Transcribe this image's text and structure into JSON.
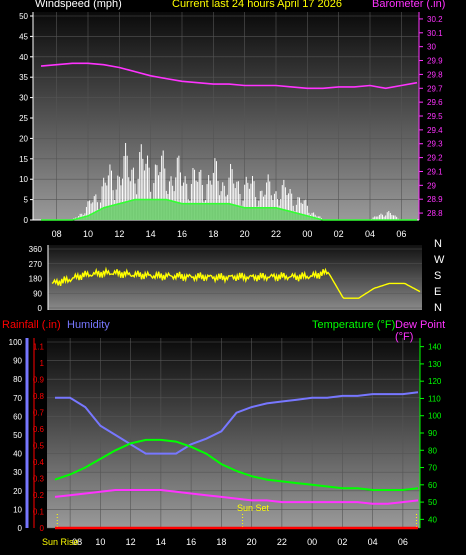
{
  "colors": {
    "background": "#000000",
    "white": "#ffffff",
    "yellow": "#ffff00",
    "magenta": "#ff33ff",
    "green": "#00ff00",
    "red": "#ff0000",
    "blue": "#7777ff",
    "wind_green": "#33ff33",
    "gust_white": "#ffffff"
  },
  "header": {
    "left": "Windspeed (mph)",
    "center": "Current last 24 hours April 17 2026",
    "right": "Barometer (.in)"
  },
  "bottom_header": {
    "rainfall": "Rainfall (.in)",
    "humidity": "Humidity",
    "temperature": "Temperature (°F)",
    "dewpoint": "Dew Point (°F)"
  },
  "annotations": {
    "sun_set": "Sun Set",
    "sun_rise": "Sun Rise"
  },
  "compass": [
    "N",
    "W",
    "S",
    "E",
    "N"
  ],
  "chart_data": [
    {
      "type": "line",
      "panel": "wind-barometer",
      "x_ticks": [
        "08",
        "10",
        "12",
        "14",
        "16",
        "18",
        "20",
        "22",
        "00",
        "02",
        "04",
        "06"
      ],
      "y_left_ticks": [
        "0",
        "5",
        "10",
        "15",
        "20",
        "25",
        "30",
        "35",
        "40",
        "45",
        "50"
      ],
      "y_left_range": [
        0,
        50
      ],
      "y_right_ticks": [
        "28.8",
        "28.9",
        "29",
        "29.1",
        "29.2",
        "29.3",
        "29.4",
        "29.5",
        "29.6",
        "29.7",
        "29.8",
        "29.9",
        "30",
        "30.1",
        "30.2"
      ],
      "y_right_range": [
        28.75,
        30.25
      ],
      "barometer": {
        "x": [
          0,
          1,
          2,
          3,
          4,
          5,
          6,
          7,
          8,
          9,
          10,
          11,
          12,
          13,
          14,
          15,
          16,
          17,
          18,
          19,
          20,
          21,
          22,
          23,
          24
        ],
        "y": [
          29.86,
          29.87,
          29.88,
          29.88,
          29.87,
          29.85,
          29.82,
          29.79,
          29.77,
          29.75,
          29.74,
          29.73,
          29.73,
          29.72,
          29.72,
          29.72,
          29.71,
          29.7,
          29.7,
          29.71,
          29.71,
          29.72,
          29.7,
          29.72,
          29.74
        ]
      },
      "wind_gust": {
        "x": [
          0,
          1,
          2,
          3,
          4,
          5,
          6,
          7,
          8,
          9,
          10,
          11,
          12,
          13,
          14,
          15,
          16,
          17,
          18,
          19,
          20,
          21,
          22,
          23,
          24
        ],
        "y": [
          0,
          0,
          0,
          3,
          8,
          11,
          13,
          12,
          11,
          10,
          9,
          10,
          9,
          8,
          7,
          7,
          6,
          3,
          0,
          0,
          0,
          0,
          2,
          0,
          0
        ]
      },
      "wind_avg": {
        "x": [
          0,
          1,
          2,
          3,
          4,
          5,
          6,
          7,
          8,
          9,
          10,
          11,
          12,
          13,
          14,
          15,
          16,
          17,
          18,
          19,
          20,
          21,
          22,
          23,
          24
        ],
        "y": [
          0,
          0,
          0,
          1,
          3,
          4,
          5,
          5,
          5,
          4,
          4,
          4,
          4,
          3,
          3,
          3,
          2,
          1,
          0,
          0,
          0,
          0,
          0,
          0,
          0
        ]
      }
    },
    {
      "type": "line",
      "panel": "wind-direction",
      "y_ticks": [
        "360",
        "270",
        "180",
        "90",
        "0"
      ],
      "y_range": [
        0,
        360
      ],
      "direction": {
        "x": [
          0,
          1,
          2,
          3,
          4,
          5,
          6,
          7,
          8,
          9,
          10,
          11,
          12,
          13,
          14,
          15,
          16,
          17,
          18,
          19,
          20,
          21,
          22,
          23,
          24
        ],
        "y": [
          150,
          170,
          200,
          210,
          215,
          205,
          200,
          195,
          195,
          190,
          190,
          185,
          190,
          188,
          190,
          192,
          190,
          195,
          220,
          60,
          60,
          120,
          150,
          150,
          100
        ]
      }
    },
    {
      "type": "line",
      "panel": "temp-humidity",
      "x_ticks": [
        "08",
        "10",
        "12",
        "14",
        "16",
        "18",
        "20",
        "22",
        "00",
        "02",
        "04",
        "06"
      ],
      "humidity_ticks": [
        "0",
        "10",
        "20",
        "30",
        "40",
        "50",
        "60",
        "70",
        "80",
        "90",
        "100"
      ],
      "humidity_range": [
        0,
        100
      ],
      "rainfall_ticks": [
        "0",
        "0.1",
        "0.2",
        "0.3",
        "0.4",
        "0.5",
        "0.6",
        "0.7",
        "0.8",
        "0.9",
        "1",
        "1.1"
      ],
      "rainfall_range": [
        0,
        1.15
      ],
      "temp_ticks": [
        "40",
        "50",
        "60",
        "70",
        "80",
        "90",
        "100",
        "110",
        "120",
        "130",
        "140"
      ],
      "temp_range": [
        35,
        145
      ],
      "humidity": {
        "x": [
          0,
          1,
          2,
          3,
          4,
          5,
          6,
          7,
          8,
          9,
          10,
          11,
          12,
          13,
          14,
          15,
          16,
          17,
          18,
          19,
          20,
          21,
          22,
          23,
          24
        ],
        "y": [
          70,
          70,
          65,
          55,
          50,
          45,
          40,
          40,
          40,
          45,
          48,
          52,
          62,
          65,
          67,
          68,
          69,
          70,
          70,
          71,
          71,
          72,
          72,
          72,
          73
        ]
      },
      "temperature": {
        "x": [
          0,
          1,
          2,
          3,
          4,
          5,
          6,
          7,
          8,
          9,
          10,
          11,
          12,
          13,
          14,
          15,
          16,
          17,
          18,
          19,
          20,
          21,
          22,
          23,
          24
        ],
        "y": [
          63,
          66,
          70,
          75,
          80,
          84,
          86,
          86,
          85,
          82,
          78,
          72,
          68,
          65,
          63,
          62,
          61,
          60,
          59,
          58,
          58,
          57,
          57,
          57,
          58
        ]
      },
      "dewpoint": {
        "x": [
          0,
          1,
          2,
          3,
          4,
          5,
          6,
          7,
          8,
          9,
          10,
          11,
          12,
          13,
          14,
          15,
          16,
          17,
          18,
          19,
          20,
          21,
          22,
          23,
          24
        ],
        "y": [
          53,
          54,
          55,
          56,
          57,
          57,
          57,
          57,
          56,
          55,
          54,
          53,
          52,
          51,
          51,
          50,
          50,
          50,
          50,
          50,
          50,
          49,
          49,
          50,
          51
        ]
      },
      "rainfall": {
        "x": [
          0,
          24
        ],
        "y": [
          0,
          0
        ]
      }
    }
  ]
}
